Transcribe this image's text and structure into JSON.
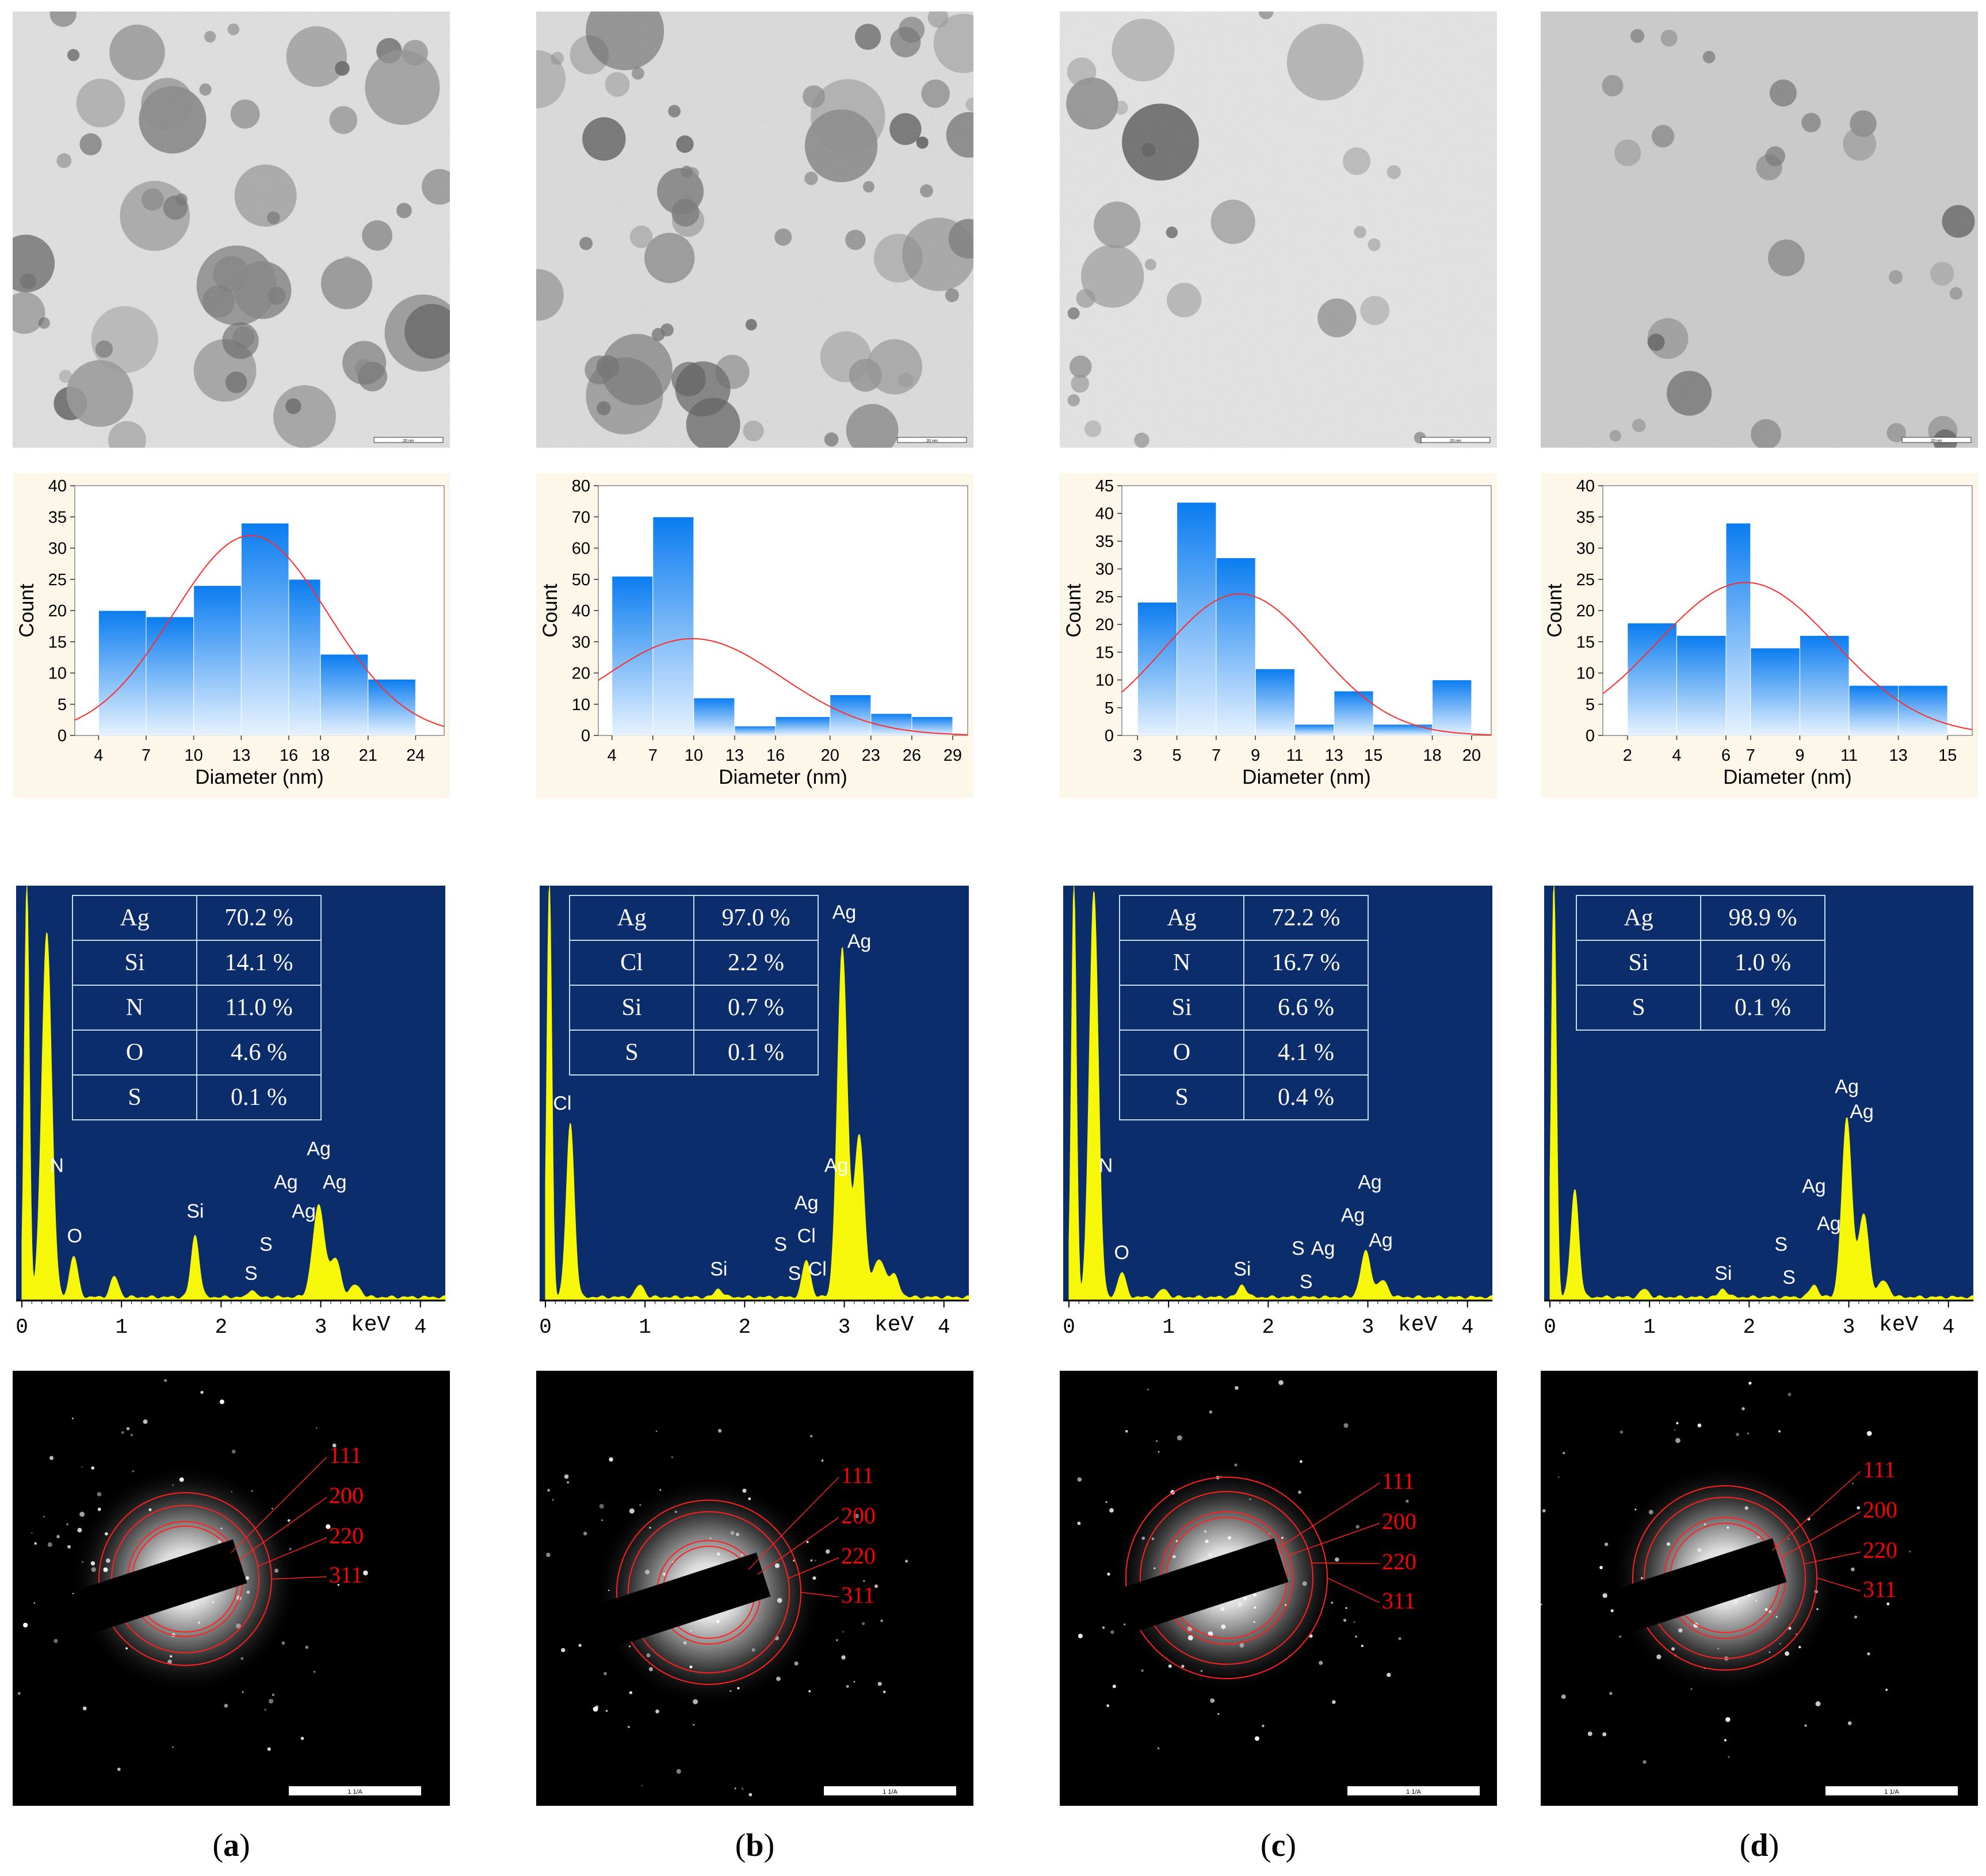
{
  "colors": {
    "bar_top": "#0a7cf0",
    "bar_bottom": "#e6f2ff",
    "fit": "#ff2a2a",
    "hist_bg": "#fdf7e9",
    "eds_bg": "#0b2d6b",
    "eds_peak": "#f7f70a",
    "ring": "#ff2020",
    "label_red": "#ff0000"
  },
  "panels": [
    {
      "caption": "a",
      "tem_scale_label": "20 nm",
      "saed_scale_label": "1 1/A",
      "chart_data": {
        "type": "bar",
        "xlabel": "Diameter (nm)",
        "ylabel": "Count",
        "x_ticks": [
          "4",
          "7",
          "10",
          "13",
          "16",
          "18",
          "21",
          "24"
        ],
        "y_ticks": [
          "0",
          "5",
          "10",
          "15",
          "20",
          "25",
          "30",
          "35",
          "40"
        ],
        "ylim": [
          0,
          40
        ],
        "bins": [
          {
            "start": 4,
            "end": 7,
            "count": 20
          },
          {
            "start": 7,
            "end": 10,
            "count": 19
          },
          {
            "start": 10,
            "end": 13,
            "count": 24
          },
          {
            "start": 13,
            "end": 16,
            "count": 34
          },
          {
            "start": 16,
            "end": 18,
            "count": 25
          },
          {
            "start": 18,
            "end": 21,
            "count": 13
          },
          {
            "start": 21,
            "end": 24,
            "count": 9
          }
        ],
        "xlim": [
          2.5,
          25.8
        ],
        "fit": {
          "mean": 13.6,
          "sd": 4.9,
          "peak": 32
        }
      },
      "eds": {
        "x_ticks": [
          "0",
          "1",
          "2",
          "3",
          "4"
        ],
        "x_unit": "keV",
        "table": [
          [
            "Ag",
            "70.2 %"
          ],
          [
            "Si",
            "14.1 %"
          ],
          [
            "N",
            "11.0 %"
          ],
          [
            "O",
            "4.6 %"
          ],
          [
            "S",
            "0.1 %"
          ]
        ],
        "peaks": [
          {
            "e": 0.05,
            "h": 1.0,
            "w": 0.025
          },
          {
            "e": 0.25,
            "h": 0.88,
            "w": 0.05
          },
          {
            "e": 0.52,
            "h": 0.1,
            "w": 0.04
          },
          {
            "e": 0.93,
            "h": 0.05,
            "w": 0.04
          },
          {
            "e": 1.74,
            "h": 0.15,
            "w": 0.04
          },
          {
            "e": 2.31,
            "h": 0.02,
            "w": 0.03
          },
          {
            "e": 2.98,
            "h": 0.22,
            "w": 0.06
          },
          {
            "e": 3.15,
            "h": 0.09,
            "w": 0.05
          },
          {
            "e": 3.35,
            "h": 0.03,
            "w": 0.05
          }
        ],
        "labels": [
          {
            "t": "N",
            "e": 0.35,
            "y": 0.31
          },
          {
            "t": "O",
            "e": 0.53,
            "y": 0.14
          },
          {
            "t": "Si",
            "e": 1.74,
            "y": 0.2
          },
          {
            "t": "S",
            "e": 2.3,
            "y": 0.05
          },
          {
            "t": "S",
            "e": 2.45,
            "y": 0.12
          },
          {
            "t": "Ag",
            "e": 2.65,
            "y": 0.27
          },
          {
            "t": "Ag",
            "e": 2.83,
            "y": 0.2
          },
          {
            "t": "Ag",
            "e": 2.98,
            "y": 0.35
          },
          {
            "t": "Ag",
            "e": 3.14,
            "y": 0.27
          }
        ]
      },
      "saed": {
        "labels": [
          "111",
          "200",
          "220",
          "311"
        ]
      }
    },
    {
      "caption": "b",
      "tem_scale_label": "20 nm",
      "saed_scale_label": "1 1/A",
      "chart_data": {
        "type": "bar",
        "xlabel": "Diameter (nm)",
        "ylabel": "Count",
        "x_ticks": [
          "4",
          "7",
          "10",
          "13",
          "16",
          "20",
          "23",
          "26",
          "29"
        ],
        "y_ticks": [
          "0",
          "10",
          "20",
          "30",
          "40",
          "50",
          "60",
          "70",
          "80"
        ],
        "ylim": [
          0,
          80
        ],
        "bins": [
          {
            "start": 4,
            "end": 7,
            "count": 51
          },
          {
            "start": 7,
            "end": 10,
            "count": 70
          },
          {
            "start": 10,
            "end": 13,
            "count": 12
          },
          {
            "start": 13,
            "end": 16,
            "count": 3
          },
          {
            "start": 16,
            "end": 20,
            "count": 6
          },
          {
            "start": 20,
            "end": 23,
            "count": 13
          },
          {
            "start": 23,
            "end": 26,
            "count": 7
          },
          {
            "start": 26,
            "end": 29,
            "count": 6
          }
        ],
        "xlim": [
          3.0,
          30.1
        ],
        "fit": {
          "mean": 9.9,
          "sd": 6.5,
          "peak": 31
        }
      },
      "eds": {
        "x_ticks": [
          "0",
          "1",
          "2",
          "3",
          "4"
        ],
        "x_unit": "keV",
        "table": [
          [
            "Ag",
            "97.0 %"
          ],
          [
            "Cl",
            "2.2 %"
          ],
          [
            "Si",
            "0.7 %"
          ],
          [
            "S",
            "0.1 %"
          ]
        ],
        "peaks": [
          {
            "e": 0.04,
            "h": 1.0,
            "w": 0.025
          },
          {
            "e": 0.25,
            "h": 0.42,
            "w": 0.04
          },
          {
            "e": 0.95,
            "h": 0.03,
            "w": 0.04
          },
          {
            "e": 1.74,
            "h": 0.02,
            "w": 0.04
          },
          {
            "e": 2.62,
            "h": 0.09,
            "w": 0.04
          },
          {
            "e": 2.98,
            "h": 0.84,
            "w": 0.05
          },
          {
            "e": 3.15,
            "h": 0.39,
            "w": 0.05
          },
          {
            "e": 3.35,
            "h": 0.09,
            "w": 0.06
          },
          {
            "e": 3.5,
            "h": 0.05,
            "w": 0.05
          }
        ],
        "labels": [
          {
            "t": "Cl",
            "e": 0.17,
            "y": 0.46
          },
          {
            "t": "Si",
            "e": 1.74,
            "y": 0.06
          },
          {
            "t": "S",
            "e": 2.36,
            "y": 0.12
          },
          {
            "t": "S",
            "e": 2.5,
            "y": 0.05
          },
          {
            "t": "Cl",
            "e": 2.73,
            "y": 0.06
          },
          {
            "t": "Cl",
            "e": 2.62,
            "y": 0.14
          },
          {
            "t": "Ag",
            "e": 2.62,
            "y": 0.22
          },
          {
            "t": "Ag",
            "e": 2.92,
            "y": 0.31
          },
          {
            "t": "Ag",
            "e": 3.0,
            "y": 0.92
          },
          {
            "t": "Ag",
            "e": 3.15,
            "y": 0.85
          }
        ]
      },
      "saed": {
        "labels": [
          "111",
          "200",
          "220",
          "311"
        ]
      }
    },
    {
      "caption": "c",
      "tem_scale_label": "20 nm",
      "saed_scale_label": "1 1/A",
      "chart_data": {
        "type": "bar",
        "xlabel": "Diameter (nm)",
        "ylabel": "Count",
        "x_ticks": [
          "3",
          "5",
          "7",
          "9",
          "11",
          "13",
          "15",
          "18",
          "20"
        ],
        "y_ticks": [
          "0",
          "5",
          "10",
          "15",
          "20",
          "25",
          "30",
          "35",
          "40",
          "45"
        ],
        "ylim": [
          0,
          45
        ],
        "bins": [
          {
            "start": 3,
            "end": 5,
            "count": 24
          },
          {
            "start": 5,
            "end": 7,
            "count": 42
          },
          {
            "start": 7,
            "end": 9,
            "count": 32
          },
          {
            "start": 9,
            "end": 11,
            "count": 12
          },
          {
            "start": 11,
            "end": 13,
            "count": 2
          },
          {
            "start": 13,
            "end": 15,
            "count": 8
          },
          {
            "start": 15,
            "end": 18,
            "count": 2
          },
          {
            "start": 18,
            "end": 20,
            "count": 10
          }
        ],
        "xlim": [
          2.2,
          21.0
        ],
        "fit": {
          "mean": 8.2,
          "sd": 3.9,
          "peak": 25.5
        }
      },
      "eds": {
        "x_ticks": [
          "0",
          "1",
          "2",
          "3",
          "4"
        ],
        "x_unit": "keV",
        "table": [
          [
            "Ag",
            "72.2 %"
          ],
          [
            "N",
            "16.7 %"
          ],
          [
            "Si",
            "6.6 %"
          ],
          [
            "O",
            "4.1 %"
          ],
          [
            "S",
            "0.4 %"
          ]
        ],
        "peaks": [
          {
            "e": 0.05,
            "h": 1.0,
            "w": 0.025
          },
          {
            "e": 0.25,
            "h": 0.98,
            "w": 0.045
          },
          {
            "e": 0.53,
            "h": 0.06,
            "w": 0.04
          },
          {
            "e": 0.95,
            "h": 0.02,
            "w": 0.04
          },
          {
            "e": 1.74,
            "h": 0.03,
            "w": 0.04
          },
          {
            "e": 2.98,
            "h": 0.11,
            "w": 0.05
          },
          {
            "e": 3.15,
            "h": 0.04,
            "w": 0.05
          }
        ],
        "labels": [
          {
            "t": "N",
            "e": 0.37,
            "y": 0.31
          },
          {
            "t": "O",
            "e": 0.53,
            "y": 0.1
          },
          {
            "t": "Si",
            "e": 1.74,
            "y": 0.06
          },
          {
            "t": "S",
            "e": 2.3,
            "y": 0.11
          },
          {
            "t": "S",
            "e": 2.38,
            "y": 0.03
          },
          {
            "t": "Ag",
            "e": 2.55,
            "y": 0.11
          },
          {
            "t": "Ag",
            "e": 2.85,
            "y": 0.19
          },
          {
            "t": "Ag",
            "e": 3.02,
            "y": 0.27
          },
          {
            "t": "Ag",
            "e": 3.13,
            "y": 0.13
          }
        ]
      },
      "saed": {
        "labels": [
          "111",
          "200",
          "220",
          "311"
        ]
      }
    },
    {
      "caption": "d",
      "tem_scale_label": "20 nm",
      "saed_scale_label": "1 1/A",
      "chart_data": {
        "type": "bar",
        "xlabel": "Diameter (nm)",
        "ylabel": "Count",
        "x_ticks": [
          "2",
          "4",
          "6",
          "7",
          "9",
          "11",
          "13",
          "15"
        ],
        "y_ticks": [
          "0",
          "5",
          "10",
          "15",
          "20",
          "25",
          "30",
          "35",
          "40"
        ],
        "ylim": [
          0,
          40
        ],
        "bins": [
          {
            "start": 2,
            "end": 4,
            "count": 18
          },
          {
            "start": 4,
            "end": 6,
            "count": 16
          },
          {
            "start": 6,
            "end": 7,
            "count": 34
          },
          {
            "start": 7,
            "end": 9,
            "count": 14
          },
          {
            "start": 9,
            "end": 11,
            "count": 16
          },
          {
            "start": 11,
            "end": 13,
            "count": 8
          },
          {
            "start": 13,
            "end": 15,
            "count": 8
          }
        ],
        "xlim": [
          1.0,
          16.0
        ],
        "fit": {
          "mean": 6.8,
          "sd": 3.6,
          "peak": 24.5
        }
      },
      "eds": {
        "x_ticks": [
          "0",
          "1",
          "2",
          "3",
          "4"
        ],
        "x_unit": "keV",
        "table": [
          [
            "Ag",
            "98.9 %"
          ],
          [
            "Si",
            "1.0 %"
          ],
          [
            "S",
            "0.1 %"
          ]
        ],
        "peaks": [
          {
            "e": 0.04,
            "h": 1.0,
            "w": 0.025
          },
          {
            "e": 0.25,
            "h": 0.26,
            "w": 0.04
          },
          {
            "e": 0.95,
            "h": 0.02,
            "w": 0.04
          },
          {
            "e": 1.74,
            "h": 0.02,
            "w": 0.04
          },
          {
            "e": 2.65,
            "h": 0.03,
            "w": 0.04
          },
          {
            "e": 2.98,
            "h": 0.43,
            "w": 0.05
          },
          {
            "e": 3.15,
            "h": 0.2,
            "w": 0.05
          },
          {
            "e": 3.35,
            "h": 0.04,
            "w": 0.05
          }
        ],
        "labels": [
          {
            "t": "Si",
            "e": 1.74,
            "y": 0.05
          },
          {
            "t": "S",
            "e": 2.32,
            "y": 0.12
          },
          {
            "t": "S",
            "e": 2.4,
            "y": 0.04
          },
          {
            "t": "Ag",
            "e": 2.65,
            "y": 0.26
          },
          {
            "t": "Ag",
            "e": 2.8,
            "y": 0.17
          },
          {
            "t": "Ag",
            "e": 2.98,
            "y": 0.5
          },
          {
            "t": "Ag",
            "e": 3.13,
            "y": 0.44
          }
        ]
      },
      "saed": {
        "labels": [
          "111",
          "200",
          "220",
          "311"
        ]
      }
    }
  ]
}
